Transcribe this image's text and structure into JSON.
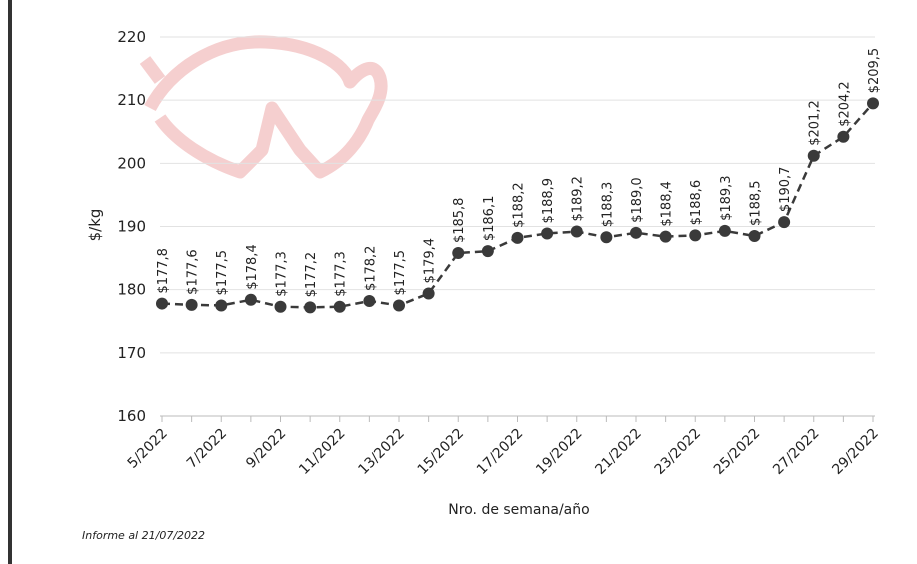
{
  "chart_data": {
    "type": "line",
    "y_label": "$/kg",
    "x_label": "Nro. de semana/año",
    "footnote": "Informe al 21/07/2022",
    "categories": [
      "5/2022",
      null,
      "7/2022",
      null,
      "9/2022",
      null,
      "11/2022",
      null,
      "13/2022",
      null,
      "15/2022",
      null,
      "17/2022",
      null,
      "19/2022",
      null,
      "21/2022",
      null,
      "23/2022",
      null,
      "25/2022",
      null,
      "27/2022",
      null,
      "29/2022"
    ],
    "values": [
      177.8,
      177.6,
      177.5,
      178.4,
      177.3,
      177.2,
      177.3,
      178.2,
      177.5,
      179.4,
      185.8,
      186.1,
      188.2,
      188.9,
      189.2,
      188.3,
      189.0,
      188.4,
      188.6,
      189.3,
      188.5,
      190.7,
      201.2,
      204.2,
      209.5
    ],
    "value_labels": [
      "$177,8",
      "$177,6",
      "$177,5",
      "$178,4",
      "$177,3",
      "$177,2",
      "$177,3",
      "$178,2",
      "$177,5",
      "$179,4",
      "$185,8",
      "$186,1",
      "$188,2",
      "$188,9",
      "$189,2",
      "$188,3",
      "$189,0",
      "$188,4",
      "$188,6",
      "$189,3",
      "$188,5",
      "$190,7",
      "$201,2",
      "$204,2",
      "$209,5"
    ],
    "color": "#3a3a3a",
    "ylim": [
      160,
      220
    ],
    "yticks": [
      160,
      170,
      180,
      190,
      200,
      210,
      220
    ],
    "grid": true
  }
}
